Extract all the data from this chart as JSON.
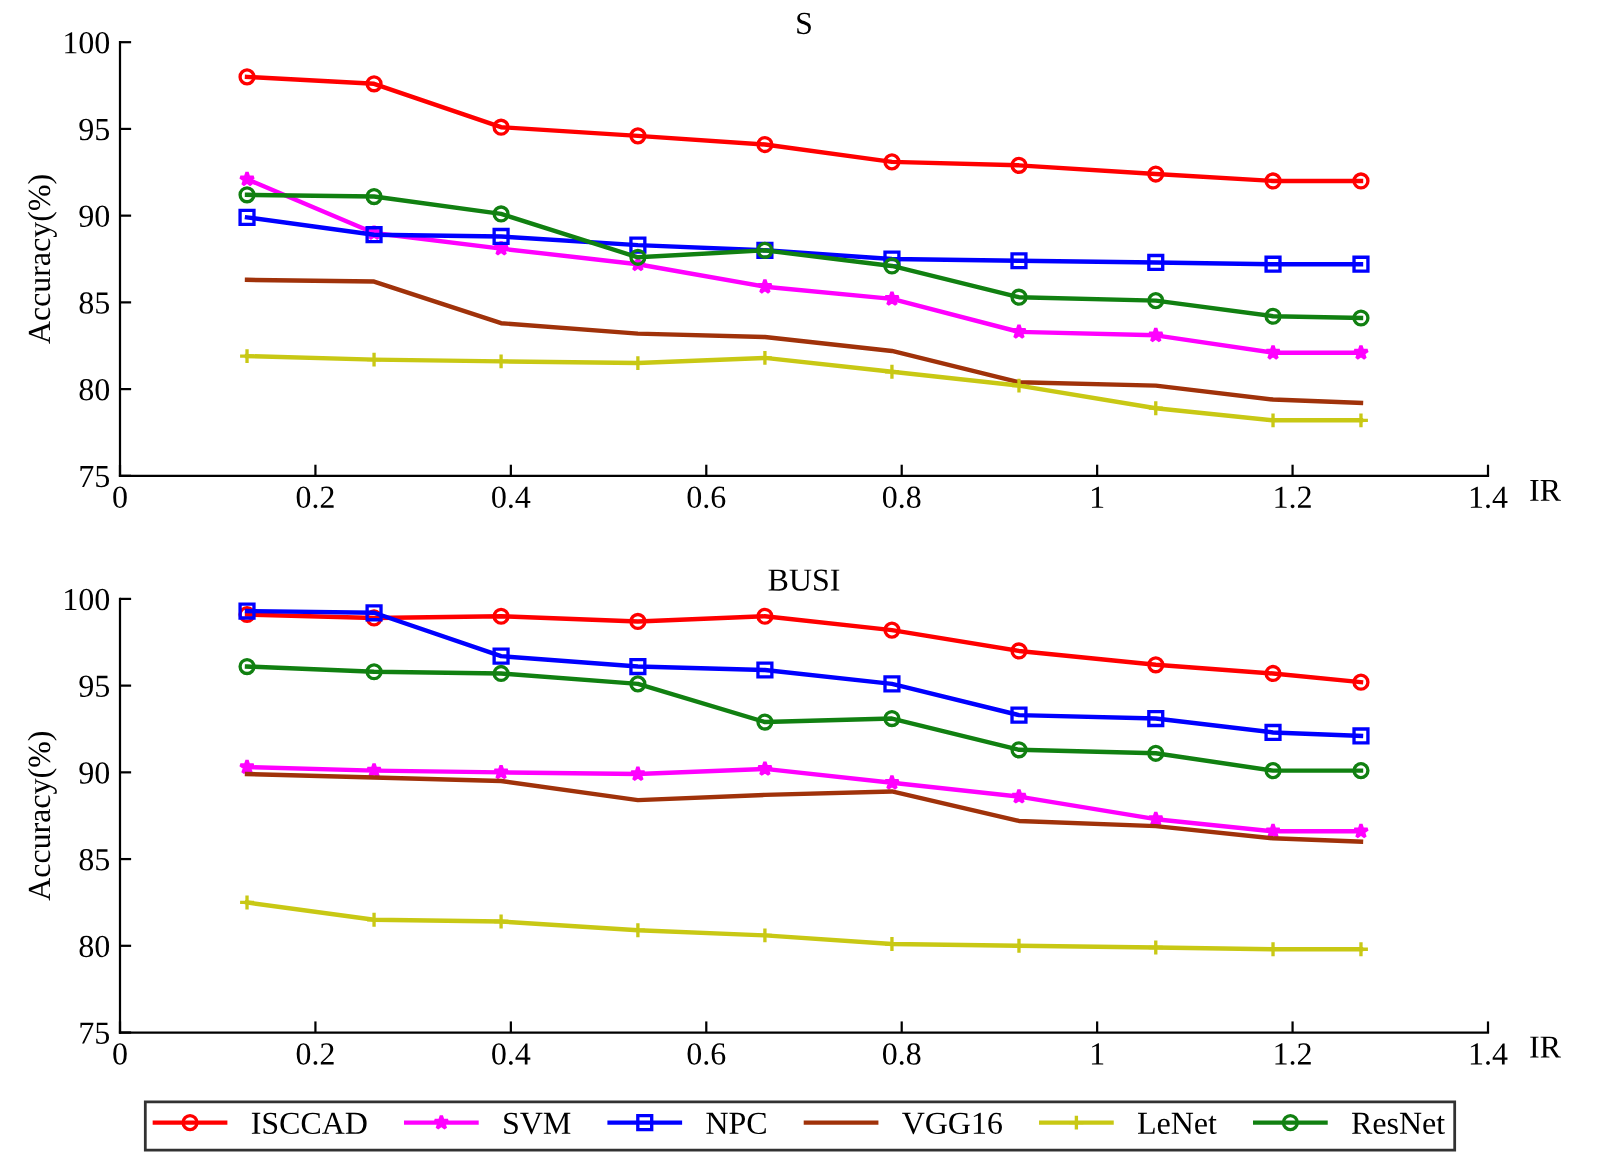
{
  "chart_data": [
    {
      "type": "line",
      "title": "S",
      "xlabel": "IR",
      "ylabel": "Accuracy(%)",
      "x": [
        0.13,
        0.26,
        0.39,
        0.53,
        0.66,
        0.79,
        0.92,
        1.06,
        1.18,
        1.27
      ],
      "xlim": [
        0,
        1.4
      ],
      "xticks": [
        0,
        0.2,
        0.4,
        0.6,
        0.8,
        1,
        1.2,
        1.4
      ],
      "ylim": [
        75,
        100
      ],
      "yticks": [
        75,
        80,
        85,
        90,
        95,
        100
      ],
      "grid": false,
      "legend": "bottom",
      "series": [
        {
          "name": "ISCCAD",
          "color": "#ff0000",
          "marker": "circle",
          "values": [
            98.0,
            97.6,
            95.1,
            94.6,
            94.1,
            93.1,
            92.9,
            92.4,
            92.0,
            92.0
          ]
        },
        {
          "name": "SVM",
          "color": "#ff00ff",
          "marker": "star",
          "values": [
            92.1,
            89.0,
            88.1,
            87.2,
            85.9,
            85.2,
            83.3,
            83.1,
            82.1,
            82.1
          ]
        },
        {
          "name": "NPC",
          "color": "#0000ff",
          "marker": "square",
          "values": [
            89.9,
            88.9,
            88.8,
            88.3,
            88.0,
            87.5,
            87.4,
            87.3,
            87.2,
            87.2
          ]
        },
        {
          "name": "VGG16",
          "color": "#a0320a",
          "marker": "none",
          "values": [
            86.3,
            86.2,
            83.8,
            83.2,
            83.0,
            82.2,
            80.4,
            80.2,
            79.4,
            79.2
          ]
        },
        {
          "name": "LeNet",
          "color": "#c8c814",
          "marker": "cross",
          "values": [
            81.9,
            81.7,
            81.6,
            81.5,
            81.8,
            81.0,
            80.2,
            78.9,
            78.2,
            78.2
          ]
        },
        {
          "name": "ResNet",
          "color": "#118011",
          "marker": "circle",
          "values": [
            91.2,
            91.1,
            90.1,
            87.6,
            88.0,
            87.1,
            85.3,
            85.1,
            84.2,
            84.1
          ]
        }
      ]
    },
    {
      "type": "line",
      "title": "BUSI",
      "xlabel": "IR",
      "ylabel": "Accuracy(%)",
      "x": [
        0.13,
        0.26,
        0.39,
        0.53,
        0.66,
        0.79,
        0.92,
        1.06,
        1.18,
        1.27
      ],
      "xlim": [
        0,
        1.4
      ],
      "xticks": [
        0,
        0.2,
        0.4,
        0.6,
        0.8,
        1,
        1.2,
        1.4
      ],
      "ylim": [
        75,
        100
      ],
      "yticks": [
        75,
        80,
        85,
        90,
        95,
        100
      ],
      "grid": false,
      "legend": "bottom",
      "series": [
        {
          "name": "ISCCAD",
          "color": "#ff0000",
          "marker": "circle",
          "values": [
            99.1,
            98.9,
            99.0,
            98.7,
            99.0,
            98.2,
            97.0,
            96.2,
            95.7,
            95.2
          ]
        },
        {
          "name": "SVM",
          "color": "#ff00ff",
          "marker": "star",
          "values": [
            90.3,
            90.1,
            90.0,
            89.9,
            90.2,
            89.4,
            88.6,
            87.3,
            86.6,
            86.6
          ]
        },
        {
          "name": "NPC",
          "color": "#0000ff",
          "marker": "square",
          "values": [
            99.3,
            99.2,
            96.7,
            96.1,
            95.9,
            95.1,
            93.3,
            93.1,
            92.3,
            92.1
          ]
        },
        {
          "name": "VGG16",
          "color": "#a0320a",
          "marker": "none",
          "values": [
            89.9,
            89.7,
            89.5,
            88.4,
            88.7,
            88.9,
            87.2,
            86.9,
            86.2,
            86.0
          ]
        },
        {
          "name": "LeNet",
          "color": "#c8c814",
          "marker": "cross",
          "values": [
            82.5,
            81.5,
            81.4,
            80.9,
            80.6,
            80.1,
            80.0,
            79.9,
            79.8,
            79.8
          ]
        },
        {
          "name": "ResNet",
          "color": "#118011",
          "marker": "circle",
          "values": [
            96.1,
            95.8,
            95.7,
            95.1,
            92.9,
            93.1,
            91.3,
            91.1,
            90.1,
            90.1
          ]
        }
      ]
    }
  ]
}
